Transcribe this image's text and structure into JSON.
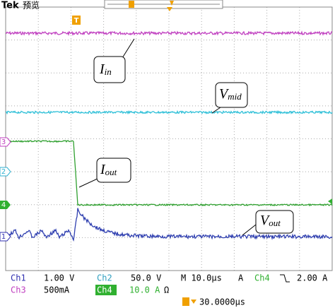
{
  "header": {
    "brand": "Tek",
    "mode": "预览",
    "trigger_marker": "T"
  },
  "channel_markers": [
    "3",
    "2",
    "4",
    "1"
  ],
  "annotations": [
    {
      "base": "I",
      "sub": "in"
    },
    {
      "base": "V",
      "sub": "mid"
    },
    {
      "base": "I",
      "sub": "out"
    },
    {
      "base": "V",
      "sub": "out"
    }
  ],
  "status": {
    "row1": [
      "Ch1",
      "1.00 V",
      "Ch2",
      "50.0 V",
      "M 10.0µs",
      "A",
      "Ch4",
      "2.00 A"
    ],
    "row2": [
      "Ch3",
      "500mA",
      "Ch4",
      "10.0 A",
      "Ω"
    ],
    "row3": [
      "30.0000µs"
    ]
  }
}
